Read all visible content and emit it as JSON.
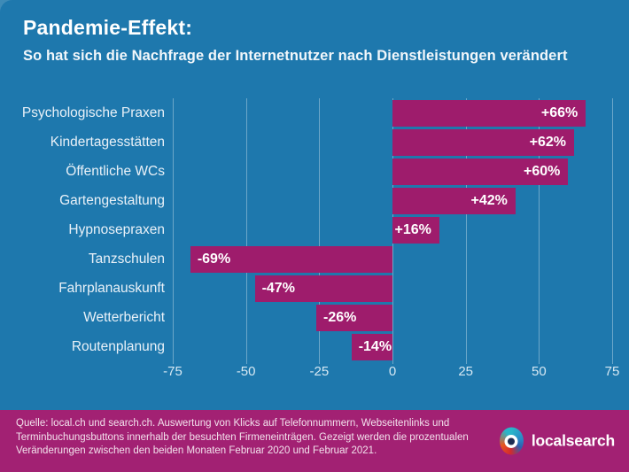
{
  "header": {
    "title": "Pandemie-Effekt:",
    "subtitle": "So hat sich die Nachfrage der Internetnutzer nach Dienstleistungen verändert"
  },
  "chart_data": {
    "type": "bar",
    "orientation": "horizontal",
    "title": "Pandemie-Effekt:",
    "subtitle": "So hat sich die Nachfrage der Internetnutzer nach Dienstleistungen verändert",
    "categories": [
      "Psychologische Praxen",
      "Kindertagesstätten",
      "Öffentliche WCs",
      "Gartengestaltung",
      "Hypnosepraxen",
      "Tanzschulen",
      "Fahrplanauskunft",
      "Wetterbericht",
      "Routenplanung"
    ],
    "values": [
      66,
      62,
      60,
      42,
      16,
      -69,
      -47,
      -26,
      -14
    ],
    "value_labels": [
      "+66%",
      "+62%",
      "+60%",
      "+42%",
      "+16%",
      "-69%",
      "-47%",
      "-26%",
      "-14%"
    ],
    "xlabel": "",
    "ylabel": "",
    "xlim": [
      -75,
      75
    ],
    "xticks": [
      -75,
      -50,
      -25,
      0,
      25,
      50,
      75
    ],
    "grid": true,
    "legend": false,
    "bar_color": "#9E1C6C",
    "value_label_color": "#FFFFFF"
  },
  "footer": {
    "lines": [
      "Quelle: local.ch und search.ch. Auswertung von Klicks auf Telefonnummern, Webseitenlinks und",
      "Terminbuchungsbuttons innerhalb der besuchten Firmeneinträgen. Gezeigt werden die prozentualen",
      "Veränderungen zwischen den beiden Monaten Februar 2020 und Februar 2021."
    ],
    "logo_text": "localsearch"
  },
  "colors": {
    "background": "#1E78AD",
    "footer_background": "#A22173",
    "bar": "#9E1C6C",
    "corner_accent": "#3E8BB7",
    "gridline": "rgba(255,255,255,0.35)"
  }
}
